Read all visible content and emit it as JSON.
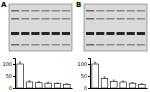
{
  "chart_data": [
    {
      "type": "bar",
      "title": "A",
      "categories": [
        null,
        null,
        null,
        null,
        null,
        null
      ],
      "values": [
        100,
        25,
        22,
        20,
        18,
        15
      ],
      "errors": [
        8,
        5,
        4,
        4,
        3,
        3
      ],
      "color": "#ffffff",
      "ylim": [
        0,
        125
      ],
      "yticks": [
        0,
        50,
        100
      ],
      "tick_labels": "y"
    },
    {
      "type": "bar",
      "title": "B",
      "categories": [
        null,
        null,
        null,
        null,
        null,
        null
      ],
      "values": [
        100,
        40,
        28,
        25,
        20,
        15
      ],
      "errors": [
        8,
        6,
        5,
        4,
        3,
        3
      ],
      "color": "#ffffff",
      "ylim": [
        0,
        125
      ],
      "yticks": [
        0,
        50,
        100
      ],
      "tick_labels": "y"
    }
  ]
}
